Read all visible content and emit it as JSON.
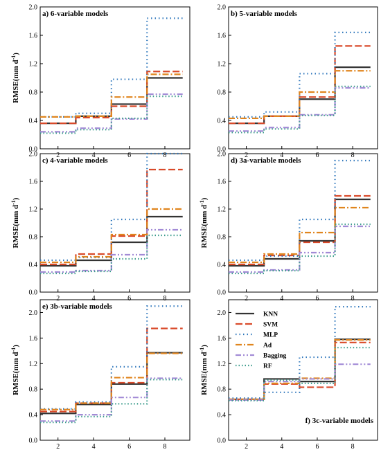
{
  "figure": {
    "y_axis_label_main": "RMSE(mm d",
    "y_axis_label_sup": "-1",
    "y_axis_label_close": ")"
  },
  "styles": {
    "KNN": {
      "color": "#333333",
      "dash": "",
      "width": 2.2
    },
    "SVM": {
      "color": "#d94a2a",
      "dash": "10,4",
      "width": 2.2
    },
    "MLP": {
      "color": "#2f77bc",
      "dash": "1.5,4",
      "width": 2.2
    },
    "Ad": {
      "color": "#e0851e",
      "dash": "9,3,2,3",
      "width": 2.2
    },
    "Bagging": {
      "color": "#a28bd6",
      "dash": "8,3,2,3,2,3",
      "width": 2.2
    },
    "RF": {
      "color": "#3c9c8c",
      "dash": "1.5,3",
      "width": 2.2
    }
  },
  "legend": {
    "entries": [
      "KNN",
      "SVM",
      "MLP",
      "Ad",
      "Bagging",
      "RF"
    ]
  },
  "chart_data": [
    {
      "type": "line",
      "step": true,
      "title": "a) 6-variable models",
      "x_edges": [
        1,
        3,
        5,
        7,
        9
      ],
      "xticks": [
        2,
        4,
        6,
        8
      ],
      "xlim": [
        1,
        9.4
      ],
      "ylim": [
        0,
        2.0
      ],
      "yticks": [
        0.0,
        0.4,
        0.8,
        1.2,
        1.6,
        2.0
      ],
      "ylabel": "RMSE(mm d-1)",
      "series": [
        {
          "name": "KNN",
          "values": [
            0.36,
            0.46,
            0.63,
            1.0
          ]
        },
        {
          "name": "SVM",
          "values": [
            0.36,
            0.44,
            0.6,
            1.09
          ]
        },
        {
          "name": "MLP",
          "values": [
            0.45,
            0.5,
            0.98,
            1.84
          ]
        },
        {
          "name": "Ad",
          "values": [
            0.45,
            0.46,
            0.73,
            1.05
          ]
        },
        {
          "name": "Bagging",
          "values": [
            0.24,
            0.29,
            0.42,
            0.77
          ]
        },
        {
          "name": "RF",
          "values": [
            0.22,
            0.27,
            0.43,
            0.74
          ]
        }
      ]
    },
    {
      "type": "line",
      "step": true,
      "title": "b) 5-variable models",
      "x_edges": [
        1,
        3,
        5,
        7,
        9
      ],
      "xticks": [
        2,
        4,
        6,
        8
      ],
      "xlim": [
        1,
        9.4
      ],
      "ylim": [
        0,
        2.0
      ],
      "yticks": [
        0.0,
        0.4,
        0.8,
        1.2,
        1.6,
        2.0
      ],
      "ylabel": "",
      "series": [
        {
          "name": "KNN",
          "values": [
            0.36,
            0.46,
            0.7,
            1.15
          ]
        },
        {
          "name": "SVM",
          "values": [
            0.36,
            0.46,
            0.73,
            1.45
          ]
        },
        {
          "name": "MLP",
          "values": [
            0.45,
            0.52,
            1.06,
            1.64
          ]
        },
        {
          "name": "Ad",
          "values": [
            0.43,
            0.46,
            0.8,
            1.1
          ]
        },
        {
          "name": "Bagging",
          "values": [
            0.25,
            0.3,
            0.48,
            0.86
          ]
        },
        {
          "name": "RF",
          "values": [
            0.23,
            0.28,
            0.47,
            0.88
          ]
        }
      ]
    },
    {
      "type": "line",
      "step": true,
      "title": "c) 4-variable models",
      "x_edges": [
        1,
        3,
        5,
        7,
        9
      ],
      "xticks": [
        2,
        4,
        6,
        8
      ],
      "xlim": [
        1,
        9.4
      ],
      "ylim": [
        0,
        2.0
      ],
      "yticks": [
        0.0,
        0.4,
        0.8,
        1.2,
        1.6,
        2.0
      ],
      "ylabel": "RMSE(mm d-1)",
      "series": [
        {
          "name": "KNN",
          "values": [
            0.38,
            0.46,
            0.72,
            1.09
          ]
        },
        {
          "name": "SVM",
          "values": [
            0.4,
            0.55,
            0.81,
            1.77
          ]
        },
        {
          "name": "MLP",
          "values": [
            0.46,
            0.5,
            1.05,
            2.0
          ]
        },
        {
          "name": "Ad",
          "values": [
            0.43,
            0.51,
            0.83,
            1.2
          ]
        },
        {
          "name": "Bagging",
          "values": [
            0.29,
            0.31,
            0.54,
            0.9
          ]
        },
        {
          "name": "RF",
          "values": [
            0.27,
            0.3,
            0.48,
            0.82
          ]
        }
      ]
    },
    {
      "type": "line",
      "step": true,
      "title": "d) 3a-variable models",
      "x_edges": [
        1,
        3,
        5,
        7,
        9
      ],
      "xticks": [
        2,
        4,
        6,
        8
      ],
      "xlim": [
        1,
        9.4
      ],
      "ylim": [
        0,
        2.0
      ],
      "yticks": [
        0.0,
        0.4,
        0.8,
        1.2,
        1.6,
        2.0
      ],
      "ylabel": "RMSE(mm d-1)",
      "series": [
        {
          "name": "KNN",
          "values": [
            0.38,
            0.48,
            0.74,
            1.34
          ]
        },
        {
          "name": "SVM",
          "values": [
            0.4,
            0.53,
            0.72,
            1.39
          ]
        },
        {
          "name": "MLP",
          "values": [
            0.46,
            0.52,
            1.05,
            1.9
          ]
        },
        {
          "name": "Ad",
          "values": [
            0.43,
            0.55,
            0.86,
            1.22
          ]
        },
        {
          "name": "Bagging",
          "values": [
            0.29,
            0.32,
            0.57,
            0.95
          ]
        },
        {
          "name": "RF",
          "values": [
            0.27,
            0.31,
            0.52,
            0.98
          ]
        }
      ]
    },
    {
      "type": "line",
      "step": true,
      "title": "e) 3b-variable models",
      "x_edges": [
        1,
        3,
        5,
        7,
        9
      ],
      "xticks": [
        2,
        4,
        6,
        8
      ],
      "xlim": [
        1,
        9.4
      ],
      "ylim": [
        0,
        2.2
      ],
      "yticks": [
        0.0,
        0.4,
        0.8,
        1.2,
        1.6,
        2.0
      ],
      "ylabel": "RMSE(mm d-1)",
      "series": [
        {
          "name": "KNN",
          "values": [
            0.42,
            0.56,
            0.88,
            1.37
          ]
        },
        {
          "name": "SVM",
          "values": [
            0.45,
            0.58,
            0.9,
            1.75
          ]
        },
        {
          "name": "MLP",
          "values": [
            0.49,
            0.6,
            1.15,
            2.1
          ]
        },
        {
          "name": "Ad",
          "values": [
            0.48,
            0.58,
            0.98,
            1.36
          ]
        },
        {
          "name": "Bagging",
          "values": [
            0.3,
            0.4,
            0.67,
            0.97
          ]
        },
        {
          "name": "RF",
          "values": [
            0.28,
            0.37,
            0.57,
            0.95
          ]
        }
      ]
    },
    {
      "type": "line",
      "step": true,
      "title": "f) 3c-variable models",
      "x_edges": [
        1,
        3,
        5,
        7,
        9
      ],
      "xticks": [
        2,
        4,
        6,
        8
      ],
      "xlim": [
        1,
        9.4
      ],
      "ylim": [
        0,
        2.2
      ],
      "yticks": [
        0.0,
        0.4,
        0.8,
        1.2,
        1.6,
        2.0
      ],
      "ylabel": "RMSE(mm d-1)",
      "series": [
        {
          "name": "KNN",
          "values": [
            0.64,
            0.96,
            0.92,
            1.58
          ]
        },
        {
          "name": "SVM",
          "values": [
            0.64,
            0.88,
            0.83,
            1.53
          ]
        },
        {
          "name": "MLP",
          "values": [
            0.66,
            0.75,
            1.3,
            2.09
          ]
        },
        {
          "name": "Ad",
          "values": [
            0.64,
            0.89,
            0.97,
            1.57
          ]
        },
        {
          "name": "Bagging",
          "values": [
            0.63,
            0.92,
            0.96,
            1.19
          ]
        },
        {
          "name": "RF",
          "values": [
            0.62,
            0.94,
            0.89,
            1.45
          ]
        }
      ]
    }
  ]
}
